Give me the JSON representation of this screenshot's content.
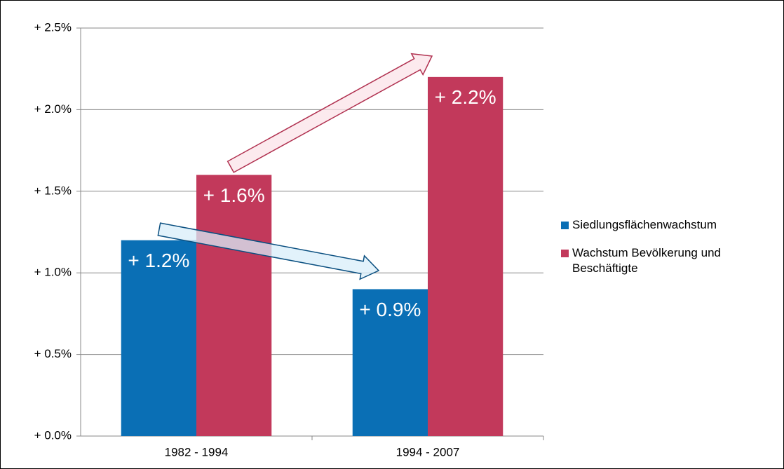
{
  "chart_data": {
    "type": "bar",
    "categories": [
      "1982 - 1994",
      "1994 - 2007"
    ],
    "series": [
      {
        "name": "Siedlungsflächenwachstum",
        "color": "#0a6fb5",
        "values": [
          1.2,
          0.9
        ],
        "value_labels": [
          "+ 1.2%",
          "+ 0.9%"
        ]
      },
      {
        "name": "Wachstum Bevölkerung und Beschäftigte",
        "color": "#c2395b",
        "values": [
          1.6,
          2.2
        ],
        "value_labels": [
          "+ 1.6%",
          "+ 2.2%"
        ]
      }
    ],
    "ylim": [
      0,
      2.5
    ],
    "yticks": [
      {
        "value": 0,
        "label": "+ 0.0%"
      },
      {
        "value": 0.5,
        "label": "+ 0.5%"
      },
      {
        "value": 1,
        "label": "+ 1.0%"
      },
      {
        "value": 1.5,
        "label": "+ 1.5%"
      },
      {
        "value": 2,
        "label": "+ 2.0%"
      },
      {
        "value": 2.5,
        "label": "+ 2.5%"
      }
    ],
    "grid": true,
    "legend": "right"
  }
}
